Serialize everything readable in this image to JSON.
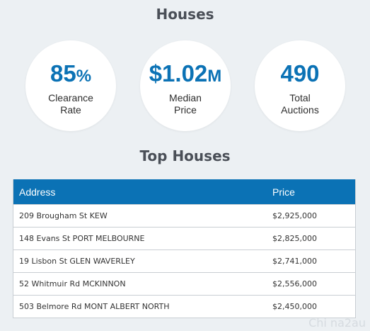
{
  "section_title": "Houses",
  "stats": {
    "clearance": {
      "value": "85",
      "suffix": "%",
      "label_line1": "Clearance",
      "label_line2": "Rate"
    },
    "median": {
      "value": "$1.02",
      "suffix": "M",
      "label_line1": "Median",
      "label_line2": "Price"
    },
    "total": {
      "value": "490",
      "suffix": "",
      "label_line1": "Total",
      "label_line2": "Auctions"
    }
  },
  "top_title": "Top Houses",
  "table": {
    "headers": {
      "address": "Address",
      "price": "Price"
    },
    "rows": [
      {
        "address": "209 Brougham St KEW",
        "price": "$2,925,000"
      },
      {
        "address": "148 Evans St PORT MELBOURNE",
        "price": "$2,825,000"
      },
      {
        "address": "19 Lisbon St GLEN WAVERLEY",
        "price": "$2,741,000"
      },
      {
        "address": "52 Whitmuir Rd MCKINNON",
        "price": "$2,556,000"
      },
      {
        "address": "503 Belmore Rd MONT ALBERT NORTH",
        "price": "$2,450,000"
      }
    ]
  },
  "colors": {
    "accent": "#0b72b5",
    "background": "#ecf0f3"
  },
  "watermark": "Chi na2au"
}
